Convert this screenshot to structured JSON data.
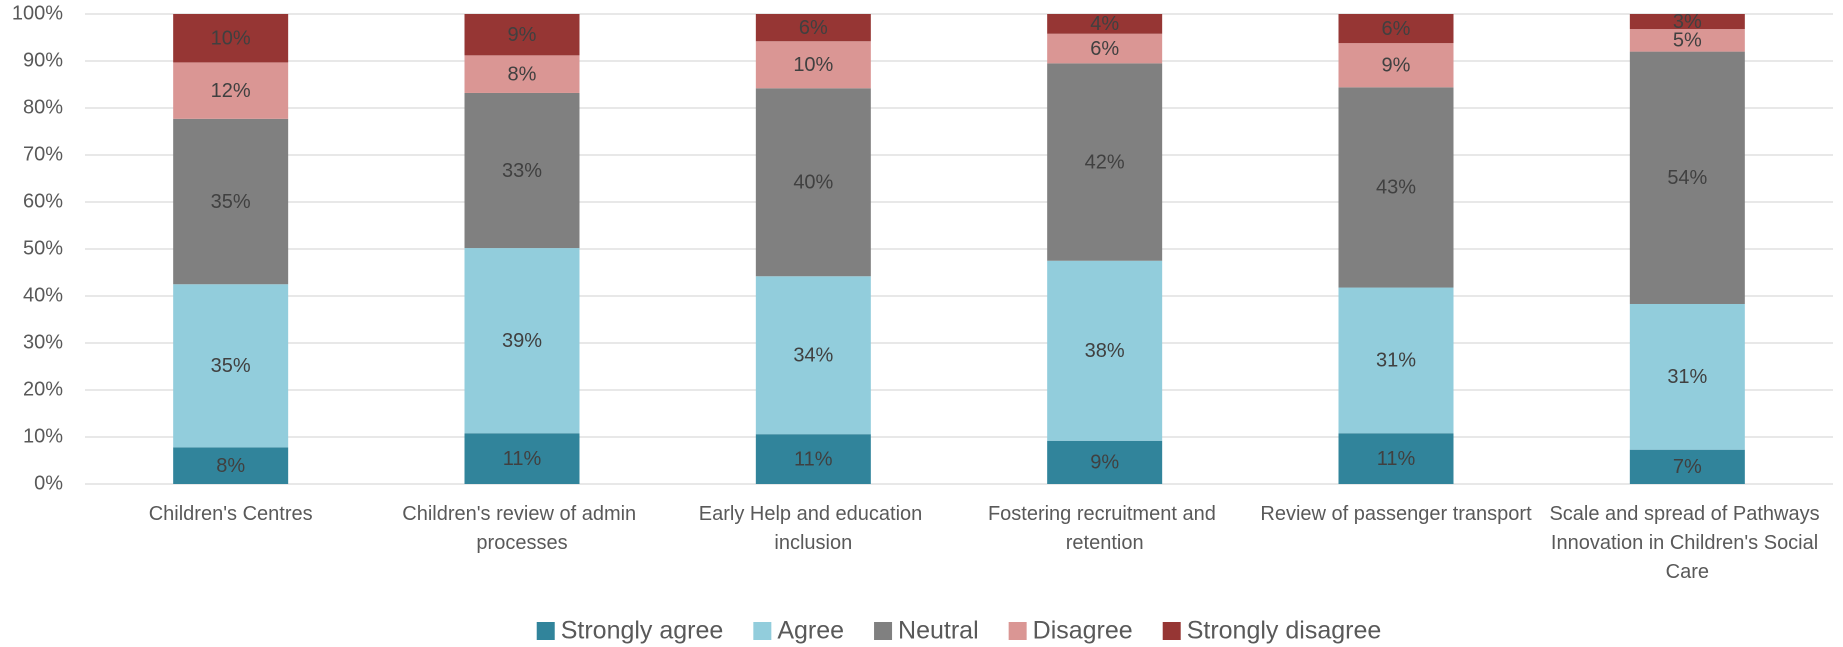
{
  "chart_data": {
    "type": "stacked_bar",
    "categories": [
      "Children's Centres",
      "Children's review of admin processes",
      "Early Help and education inclusion",
      "Fostering recruitment and retention",
      "Review of passenger transport",
      "Scale and spread of Pathways Innovation in Children's Social Care"
    ],
    "series": [
      {
        "name": "Strongly agree",
        "color": "#31849b",
        "values": [
          7.8,
          10.8,
          10.6,
          9.2,
          10.8,
          7.3
        ],
        "value_labels": [
          "8%",
          "11%",
          "11%",
          "9%",
          "11%",
          "7%"
        ]
      },
      {
        "name": "Agree",
        "color": "#92cddc",
        "values": [
          34.7,
          39.4,
          33.6,
          38.3,
          31,
          31
        ],
        "value_labels": [
          "35%",
          "39%",
          "34%",
          "38%",
          "31%",
          "31%"
        ]
      },
      {
        "name": "Neutral",
        "color": "#808080",
        "values": [
          35.2,
          33,
          40,
          42,
          42.6,
          53.7
        ],
        "value_labels": [
          "35%",
          "33%",
          "40%",
          "42%",
          "43%",
          "54%"
        ]
      },
      {
        "name": "Disagree",
        "color": "#da9694",
        "values": [
          12,
          8,
          10,
          6.3,
          9.4,
          4.8
        ],
        "value_labels": [
          "12%",
          "8%",
          "10%",
          "6%",
          "9%",
          "5%"
        ]
      },
      {
        "name": "Strongly disagree",
        "color": "#963634",
        "values": [
          10.3,
          8.8,
          5.8,
          4.2,
          6.2,
          3.2
        ],
        "value_labels": [
          "10%",
          "9%",
          "6%",
          "4%",
          "6%",
          "3%"
        ]
      }
    ],
    "ylim": [
      0,
      100
    ],
    "yticks": [
      {
        "value": 0,
        "label": "0%"
      },
      {
        "value": 10,
        "label": "10%"
      },
      {
        "value": 20,
        "label": "20%"
      },
      {
        "value": 30,
        "label": "30%"
      },
      {
        "value": 40,
        "label": "40%"
      },
      {
        "value": 50,
        "label": "50%"
      },
      {
        "value": 60,
        "label": "60%"
      },
      {
        "value": 70,
        "label": "70%"
      },
      {
        "value": 80,
        "label": "80%"
      },
      {
        "value": 90,
        "label": "90%"
      },
      {
        "value": 100,
        "label": "100%"
      }
    ],
    "grid": true,
    "legend": "bottom"
  }
}
